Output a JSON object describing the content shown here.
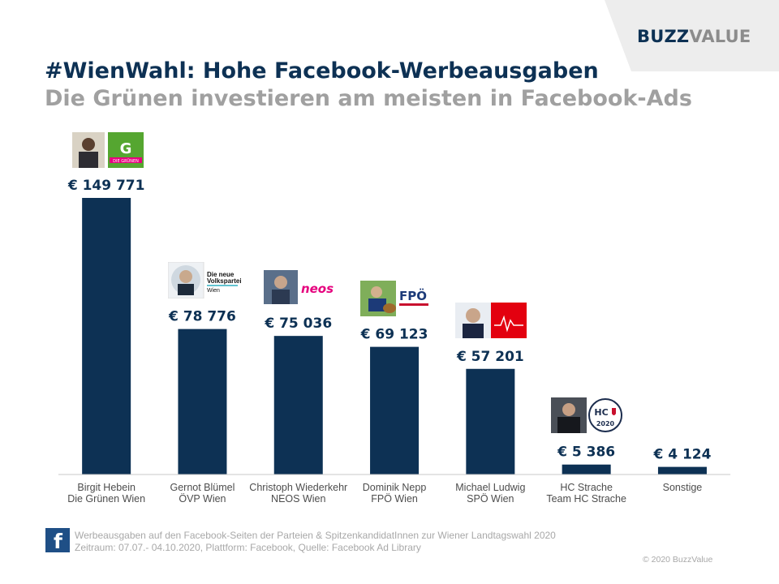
{
  "brand": {
    "part1": "BUZZ",
    "part2": "VALUE"
  },
  "title": "#WienWahl: Hohe Facebook-Werbeausgaben",
  "subtitle": "Die Grünen investieren am meisten in Facebook-Ads",
  "colors": {
    "bar": "#0d3154",
    "title": "#0d3154",
    "subtitle": "#a0a0a0",
    "corner": "#ededed"
  },
  "chart_data": {
    "type": "bar",
    "categories": [
      [
        "Birgit Hebein",
        "Die Grünen Wien"
      ],
      [
        "Gernot Blümel",
        "ÖVP Wien"
      ],
      [
        "Christoph Wiederkehr",
        "NEOS Wien"
      ],
      [
        "Dominik Nepp",
        "FPÖ Wien"
      ],
      [
        "Michael Ludwig",
        "SPÖ Wien"
      ],
      [
        "HC Strache",
        "Team HC Strache"
      ],
      [
        "Sonstige"
      ]
    ],
    "values": [
      149771,
      78776,
      75036,
      69123,
      57201,
      5386,
      4124
    ],
    "value_labels": [
      "€ 149 771",
      "€ 78 776",
      "€ 75 036",
      "€ 69 123",
      "€ 57 201",
      "€ 5 386",
      "€ 4 124"
    ],
    "ylim": [
      0,
      149771
    ],
    "grid": false,
    "legend": "none"
  },
  "logos": {
    "gruene": "DIE GRÜNEN",
    "oevp": [
      "Die neue",
      "Volkspartei",
      "Wien"
    ],
    "neos": "neos",
    "fpoe": "FPÖ",
    "hc": [
      "HC",
      "2020"
    ]
  },
  "footer": {
    "icon": "facebook-icon",
    "line1": "Werbeausgaben  auf den Facebook-Seiten  der Parteien & SpitzenkandidatInnen  zur Wiener  Landtagswahl  2020",
    "line2": "Zeitraum: 07.07.- 04.10.2020, Plattform: Facebook,  Quelle:  Facebook  Ad Library",
    "copyright": "© 2020 BuzzValue"
  }
}
